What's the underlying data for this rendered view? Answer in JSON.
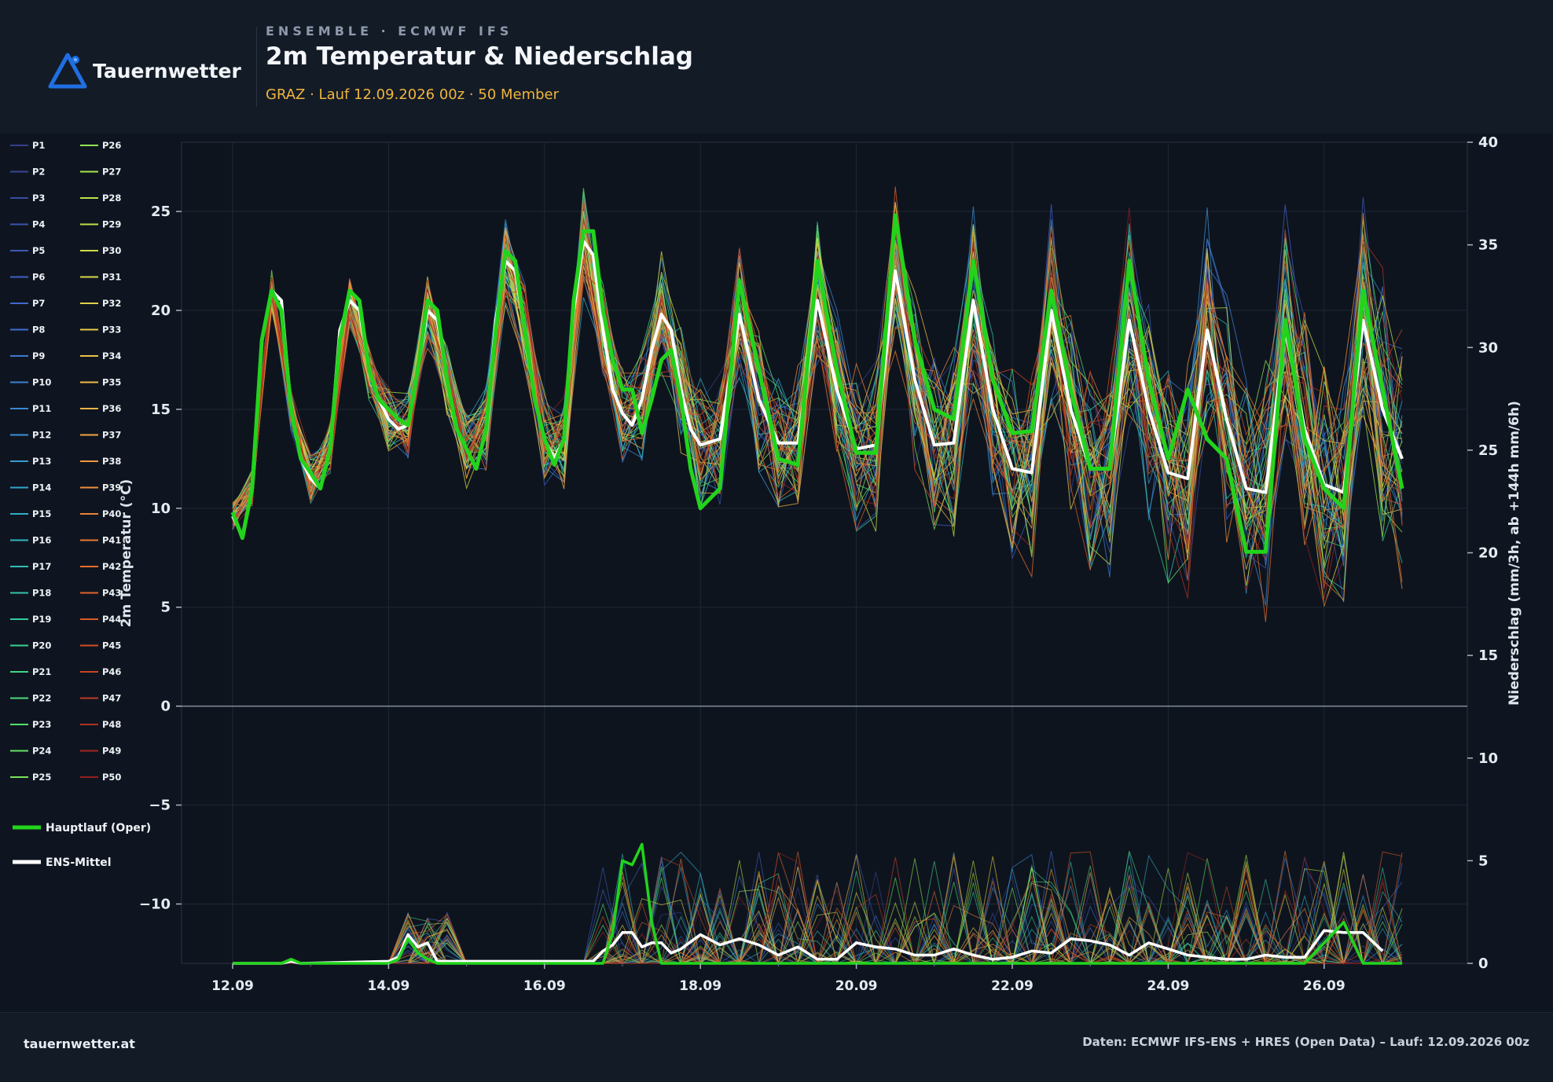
{
  "header": {
    "brand": "Tauernwetter",
    "kicker": "ENSEMBLE · ECMWF IFS",
    "title": "2m Temperatur & Niederschlag",
    "subtitle": "GRAZ · Lauf 12.09.2026 00z · 50 Member"
  },
  "footer": {
    "site": "tauernwetter.at",
    "credit": "Daten: ECMWF IFS-ENS + HRES (Open Data) – Lauf: 12.09.2026 00z"
  },
  "colors": {
    "background": "#0f1520",
    "header": "#131b27",
    "oper": "#22d41c",
    "mean": "#ffffff",
    "accent": "#f0b43c",
    "brand": "#1f6fe0"
  },
  "chart_data": {
    "type": "line",
    "x_ticks": [
      "12.09",
      "14.09",
      "16.09",
      "18.09",
      "20.09",
      "22.09",
      "24.09",
      "26.09"
    ],
    "y_left_label": "2m Temperatur (°C)",
    "y_left_ticks": [
      "25",
      "20",
      "15",
      "10",
      "5",
      "0",
      "−5",
      "−10"
    ],
    "y_left_range": [
      -13,
      28.5
    ],
    "y_right_label": "Niederschlag (mm/3h, ab +144h mm/6h)",
    "y_right_ticks": [
      "40",
      "35",
      "30",
      "25",
      "20",
      "15",
      "10",
      "5",
      "0"
    ],
    "y_right_range": [
      0,
      40
    ],
    "x_day_range": [
      0,
      15
    ],
    "member_labels": [
      "P1",
      "P2",
      "P3",
      "P4",
      "P5",
      "P6",
      "P7",
      "P8",
      "P9",
      "P10",
      "P11",
      "P12",
      "P13",
      "P14",
      "P15",
      "P16",
      "P17",
      "P18",
      "P19",
      "P20",
      "P21",
      "P22",
      "P23",
      "P24",
      "P25",
      "P26",
      "P27",
      "P28",
      "P29",
      "P30",
      "P31",
      "P32",
      "P33",
      "P34",
      "P35",
      "P36",
      "P37",
      "P38",
      "P39",
      "P40",
      "P41",
      "P42",
      "P43",
      "P44",
      "P45",
      "P46",
      "P47",
      "P48",
      "P49",
      "P50"
    ],
    "legend_extra": [
      "Hauptlauf (Oper)",
      "ENS-Mittel"
    ],
    "oper_temp": [
      [
        0.0,
        9.8
      ],
      [
        0.125,
        8.5
      ],
      [
        0.25,
        11
      ],
      [
        0.375,
        18.5
      ],
      [
        0.5,
        21
      ],
      [
        0.625,
        20
      ],
      [
        0.75,
        15
      ],
      [
        0.875,
        12.5
      ],
      [
        1.0,
        11.8
      ],
      [
        1.125,
        11
      ],
      [
        1.25,
        13
      ],
      [
        1.375,
        18.5
      ],
      [
        1.5,
        21
      ],
      [
        1.625,
        20.5
      ],
      [
        1.75,
        17
      ],
      [
        1.875,
        15.5
      ],
      [
        2.0,
        15
      ],
      [
        2.125,
        14.5
      ],
      [
        2.25,
        14.2
      ],
      [
        2.375,
        17
      ],
      [
        2.5,
        20.5
      ],
      [
        2.625,
        20
      ],
      [
        2.75,
        16.5
      ],
      [
        2.875,
        14
      ],
      [
        3.0,
        13
      ],
      [
        3.125,
        12
      ],
      [
        3.25,
        14
      ],
      [
        3.375,
        19
      ],
      [
        3.5,
        23
      ],
      [
        3.625,
        22.5
      ],
      [
        3.75,
        19
      ],
      [
        3.875,
        15.5
      ],
      [
        4.0,
        13.5
      ],
      [
        4.125,
        12.2
      ],
      [
        4.25,
        13.5
      ],
      [
        4.375,
        20.5
      ],
      [
        4.5,
        24
      ],
      [
        4.625,
        24
      ],
      [
        4.75,
        20
      ],
      [
        4.875,
        17.5
      ],
      [
        5.0,
        16
      ],
      [
        5.125,
        16
      ],
      [
        5.25,
        13.8
      ],
      [
        5.375,
        15.5
      ],
      [
        5.5,
        17.5
      ],
      [
        5.625,
        18
      ],
      [
        5.75,
        15.5
      ],
      [
        5.875,
        12
      ],
      [
        6.0,
        10
      ],
      [
        6.25,
        11
      ],
      [
        6.5,
        21.5
      ],
      [
        6.75,
        17
      ],
      [
        7.0,
        12.5
      ],
      [
        7.25,
        12.2
      ],
      [
        7.5,
        22.5
      ],
      [
        7.75,
        17
      ],
      [
        8.0,
        12.8
      ],
      [
        8.25,
        12.8
      ],
      [
        8.5,
        24.8
      ],
      [
        8.75,
        18.5
      ],
      [
        9.0,
        15
      ],
      [
        9.25,
        14.5
      ],
      [
        9.5,
        22.5
      ],
      [
        9.75,
        16.5
      ],
      [
        10.0,
        13.8
      ],
      [
        10.25,
        13.9
      ],
      [
        10.5,
        21
      ],
      [
        10.75,
        16
      ],
      [
        11.0,
        12
      ],
      [
        11.25,
        12
      ],
      [
        11.5,
        22.5
      ],
      [
        11.75,
        16.5
      ],
      [
        12.0,
        12.5
      ],
      [
        12.25,
        16
      ],
      [
        12.5,
        13.5
      ],
      [
        12.75,
        12.5
      ],
      [
        13.0,
        7.8
      ],
      [
        13.25,
        7.8
      ],
      [
        13.5,
        19.5
      ],
      [
        13.75,
        13.5
      ],
      [
        14.0,
        11
      ],
      [
        14.25,
        10
      ],
      [
        14.5,
        21
      ],
      [
        14.75,
        16
      ],
      [
        15.0,
        11
      ]
    ],
    "mean_temp": [
      [
        0.0,
        9.6
      ],
      [
        0.125,
        8.6
      ],
      [
        0.25,
        11
      ],
      [
        0.375,
        18.5
      ],
      [
        0.5,
        21
      ],
      [
        0.625,
        20.5
      ],
      [
        0.75,
        15
      ],
      [
        0.875,
        12.5
      ],
      [
        1.0,
        11.5
      ],
      [
        1.125,
        11
      ],
      [
        1.25,
        13
      ],
      [
        1.375,
        19
      ],
      [
        1.5,
        20.5
      ],
      [
        1.625,
        20
      ],
      [
        1.75,
        17
      ],
      [
        1.875,
        15.5
      ],
      [
        2.0,
        14.5
      ],
      [
        2.125,
        14
      ],
      [
        2.25,
        14.2
      ],
      [
        2.375,
        17
      ],
      [
        2.5,
        20
      ],
      [
        2.625,
        19.5
      ],
      [
        2.75,
        16.5
      ],
      [
        2.875,
        14
      ],
      [
        3.0,
        13
      ],
      [
        3.125,
        12
      ],
      [
        3.25,
        14
      ],
      [
        3.375,
        19.5
      ],
      [
        3.5,
        22.5
      ],
      [
        3.625,
        22
      ],
      [
        3.75,
        19
      ],
      [
        3.875,
        15.5
      ],
      [
        4.0,
        13.5
      ],
      [
        4.125,
        12.5
      ],
      [
        4.25,
        13.5
      ],
      [
        4.375,
        20
      ],
      [
        4.5,
        23.5
      ],
      [
        4.625,
        22.8
      ],
      [
        4.75,
        19
      ],
      [
        4.875,
        16
      ],
      [
        5.0,
        14.8
      ],
      [
        5.125,
        14.2
      ],
      [
        5.25,
        15.5
      ],
      [
        5.375,
        18
      ],
      [
        5.5,
        19.8
      ],
      [
        5.625,
        19
      ],
      [
        5.75,
        16
      ],
      [
        5.875,
        14
      ],
      [
        6.0,
        13.2
      ],
      [
        6.25,
        13.5
      ],
      [
        6.5,
        19.8
      ],
      [
        6.75,
        15.5
      ],
      [
        7.0,
        13.3
      ],
      [
        7.25,
        13.3
      ],
      [
        7.5,
        20.5
      ],
      [
        7.75,
        16
      ],
      [
        8.0,
        13
      ],
      [
        8.25,
        13.2
      ],
      [
        8.5,
        22
      ],
      [
        8.75,
        16.5
      ],
      [
        9.0,
        13.2
      ],
      [
        9.25,
        13.3
      ],
      [
        9.5,
        20.5
      ],
      [
        9.75,
        15
      ],
      [
        10.0,
        12
      ],
      [
        10.25,
        11.8
      ],
      [
        10.5,
        20
      ],
      [
        10.75,
        15
      ],
      [
        11.0,
        12
      ],
      [
        11.25,
        12
      ],
      [
        11.5,
        19.5
      ],
      [
        11.75,
        15
      ],
      [
        12.0,
        11.8
      ],
      [
        12.25,
        11.5
      ],
      [
        12.5,
        19
      ],
      [
        12.75,
        14.5
      ],
      [
        13.0,
        11
      ],
      [
        13.25,
        10.8
      ],
      [
        13.5,
        19
      ],
      [
        13.75,
        14
      ],
      [
        14.0,
        11.2
      ],
      [
        14.25,
        10.8
      ],
      [
        14.5,
        19.5
      ],
      [
        14.75,
        15
      ],
      [
        15.0,
        12.5
      ]
    ],
    "oper_precip": [
      [
        0.0,
        0
      ],
      [
        0.625,
        0
      ],
      [
        0.75,
        0.2
      ],
      [
        0.875,
        0
      ],
      [
        2.0,
        0
      ],
      [
        2.125,
        0.2
      ],
      [
        2.25,
        1.2
      ],
      [
        2.375,
        0.5
      ],
      [
        2.5,
        0.2
      ],
      [
        2.625,
        0
      ],
      [
        4.5,
        0
      ],
      [
        4.625,
        0
      ],
      [
        4.75,
        0
      ],
      [
        4.875,
        1.5
      ],
      [
        5.0,
        5
      ],
      [
        5.125,
        4.8
      ],
      [
        5.25,
        5.8
      ],
      [
        5.375,
        2
      ],
      [
        5.5,
        0
      ],
      [
        6.0,
        0
      ],
      [
        13.5,
        0
      ],
      [
        13.75,
        0
      ],
      [
        14.0,
        1
      ],
      [
        14.25,
        2
      ],
      [
        14.5,
        0
      ],
      [
        15.0,
        0
      ]
    ],
    "mean_precip": [
      [
        0.0,
        0
      ],
      [
        0.5,
        0
      ],
      [
        0.625,
        0
      ],
      [
        0.75,
        0.1
      ],
      [
        0.875,
        0
      ],
      [
        2.0,
        0.1
      ],
      [
        2.125,
        0.3
      ],
      [
        2.25,
        1.4
      ],
      [
        2.375,
        0.8
      ],
      [
        2.5,
        1
      ],
      [
        2.625,
        0.1
      ],
      [
        4.5,
        0.1
      ],
      [
        4.625,
        0.1
      ],
      [
        4.75,
        0.6
      ],
      [
        4.875,
        0.9
      ],
      [
        5.0,
        1.5
      ],
      [
        5.125,
        1.5
      ],
      [
        5.25,
        0.8
      ],
      [
        5.375,
        1
      ],
      [
        5.5,
        1
      ],
      [
        5.625,
        0.5
      ],
      [
        5.75,
        0.7
      ],
      [
        6.0,
        1.4
      ],
      [
        6.25,
        0.9
      ],
      [
        6.5,
        1.2
      ],
      [
        6.75,
        0.9
      ],
      [
        7.0,
        0.4
      ],
      [
        7.25,
        0.8
      ],
      [
        7.5,
        0.2
      ],
      [
        7.75,
        0.2
      ],
      [
        8.0,
        1
      ],
      [
        8.25,
        0.8
      ],
      [
        8.5,
        0.7
      ],
      [
        8.75,
        0.4
      ],
      [
        9.0,
        0.4
      ],
      [
        9.25,
        0.7
      ],
      [
        9.5,
        0.4
      ],
      [
        9.75,
        0.2
      ],
      [
        10.0,
        0.3
      ],
      [
        10.25,
        0.6
      ],
      [
        10.5,
        0.5
      ],
      [
        10.75,
        1.2
      ],
      [
        11.0,
        1.1
      ],
      [
        11.25,
        0.9
      ],
      [
        11.5,
        0.4
      ],
      [
        11.75,
        1
      ],
      [
        12.0,
        0.7
      ],
      [
        12.25,
        0.4
      ],
      [
        12.5,
        0.3
      ],
      [
        12.75,
        0.2
      ],
      [
        13.0,
        0.2
      ],
      [
        13.25,
        0.4
      ],
      [
        13.5,
        0.3
      ],
      [
        13.75,
        0.3
      ],
      [
        14.0,
        1.6
      ],
      [
        14.25,
        1.5
      ],
      [
        14.5,
        1.5
      ],
      [
        14.75,
        0.6
      ]
    ]
  }
}
